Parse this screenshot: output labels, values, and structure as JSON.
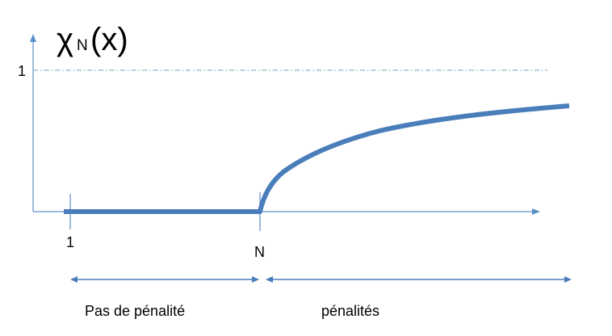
{
  "chart_data": {
    "type": "line",
    "title": {
      "symbol": "χ",
      "subscript": "N",
      "argument": "(x)"
    },
    "xlabel": "",
    "ylabel": "",
    "y_ticks": [
      "1"
    ],
    "x_ticks": [
      "1",
      "N"
    ],
    "reference_line": {
      "y": 1,
      "style": "dash-dot"
    },
    "grid": false,
    "series": [
      {
        "points": [
          {
            "x": "1",
            "y": 0
          },
          {
            "x": "N",
            "y": 0
          },
          {
            "x": "N+0.13",
            "y": 0.35
          },
          {
            "x": "N+0.5",
            "y": 0.5
          },
          {
            "x": "N+1.5",
            "y": 0.65
          }
        ]
      }
    ],
    "ranges": [
      {
        "label": "Pas de pénalité",
        "from": "1",
        "to": "N"
      },
      {
        "label": "pénalités",
        "from": "N",
        "to": "end"
      }
    ]
  }
}
